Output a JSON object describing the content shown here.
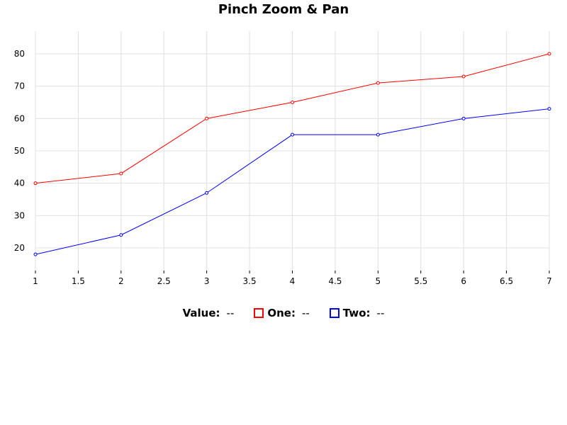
{
  "legend": {
    "value_label": "Value:",
    "value_text": "--",
    "one_label": "One:",
    "one_value": "--",
    "two_label": "Two:",
    "two_value": "--"
  },
  "colors": {
    "one": "#ff0000",
    "two": "#0000ff",
    "grid": "#e0e0e0"
  },
  "chart_data": {
    "type": "line",
    "title": "Pinch Zoom & Pan",
    "xlabel": "",
    "ylabel": "",
    "x": [
      1,
      2,
      3,
      4,
      5,
      6,
      7
    ],
    "x_ticks": [
      "1",
      "1.5",
      "2",
      "2.5",
      "3",
      "3.5",
      "4",
      "4.5",
      "5",
      "5.5",
      "6",
      "6.5",
      "7"
    ],
    "y_ticks": [
      "20",
      "30",
      "40",
      "50",
      "60",
      "70",
      "80"
    ],
    "xlim": [
      1,
      7
    ],
    "ylim": [
      13,
      87
    ],
    "grid": true,
    "legend_position": "bottom",
    "series": [
      {
        "name": "One",
        "color": "#ff0000",
        "values": [
          40,
          43,
          60,
          65,
          71,
          73,
          80
        ]
      },
      {
        "name": "Two",
        "color": "#0000ff",
        "values": [
          18,
          24,
          37,
          55,
          55,
          60,
          63
        ]
      }
    ]
  }
}
